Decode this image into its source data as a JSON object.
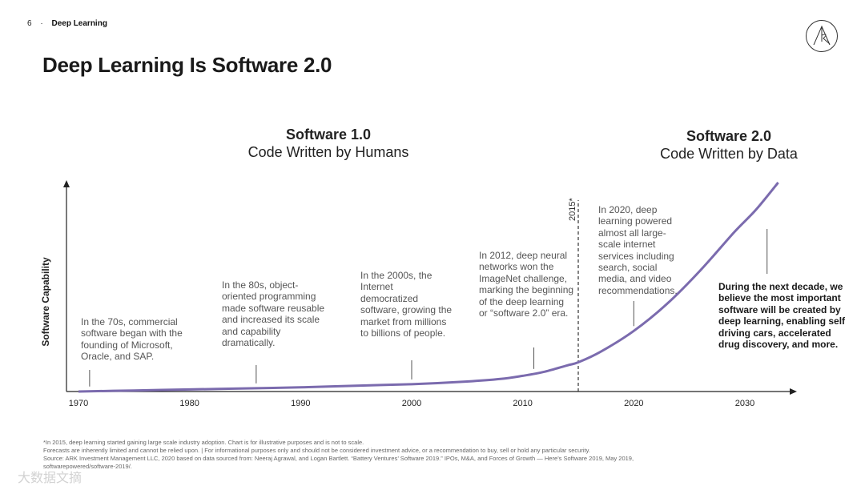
{
  "header": {
    "page_number": "6",
    "section": "Deep Learning"
  },
  "title": "Deep Learning Is Software 2.0",
  "eras": {
    "software1": {
      "title": "Software 1.0",
      "subtitle": "Code Written by Humans"
    },
    "software2": {
      "title": "Software 2.0",
      "subtitle": "Code Written by Data"
    }
  },
  "colors": {
    "curve": "#7B6BAE",
    "axis": "#222222",
    "text": "#333333"
  },
  "chart_data": {
    "type": "line",
    "title": "Deep Learning Is Software 2.0",
    "xlabel": "",
    "ylabel": "Software Capability",
    "xlim": [
      1970,
      2035
    ],
    "ylim": [
      0,
      100
    ],
    "x_ticks": [
      "1970",
      "1980",
      "1990",
      "2000",
      "2010",
      "2020",
      "2030"
    ],
    "series": [
      {
        "name": "Software Capability",
        "x": [
          1970,
          1975,
          1980,
          1985,
          1990,
          1995,
          2000,
          2005,
          2008,
          2010,
          2012,
          2014,
          2015,
          2017,
          2020,
          2023,
          2026,
          2029,
          2031,
          2033
        ],
        "values": [
          0,
          0.5,
          1,
          1.5,
          2,
          2.8,
          3.5,
          4.8,
          6,
          7.5,
          9.5,
          12.5,
          14,
          19,
          29,
          42,
          58,
          76,
          87,
          100
        ]
      }
    ],
    "marker_line": {
      "x": 2015,
      "label": "2015*"
    },
    "annotations": [
      {
        "x": 1971,
        "text": "In the 70s, commercial software began with the founding of Microsoft, Oracle, and SAP."
      },
      {
        "x": 1986,
        "text": "In the 80s, object-oriented programming made software reusable and increased its scale and capability dramatically."
      },
      {
        "x": 2000,
        "text": "In the 2000s, the Internet democratized software, growing the market from millions to billions of people."
      },
      {
        "x": 2011,
        "text": "In 2012, deep neural networks won the ImageNet challenge, marking the beginning of the deep learning or “software 2.0” era."
      },
      {
        "x": 2020,
        "text": "In 2020, deep learning powered almost all large-scale internet services including search, social media, and video recommendations."
      },
      {
        "x": 2032,
        "text": "During the next decade, we believe the most important software will be created by deep learning, enabling self driving cars, accelerated drug discovery, and more."
      }
    ]
  },
  "footnotes": [
    "*In 2015, deep learning started gaining large scale industry adoption. Chart is for illustrative purposes and is not to scale.",
    "Forecasts are inherently limited and cannot be relied upon.  |  For informational purposes only and should not be considered investment advice, or a recommendation to buy, sell or hold any particular security.",
    "Source: ARK Investment Management LLC, 2020 based on data sourced from: Neeraj Agrawal, and Logan Bartlett. “Battery Ventures’ Software 2019.” IPOs, M&A, and Forces of Growth — Here’s Software 2019, May 2019,",
    "softwarepowered/software-2019/."
  ],
  "watermark": "大数据文摘"
}
